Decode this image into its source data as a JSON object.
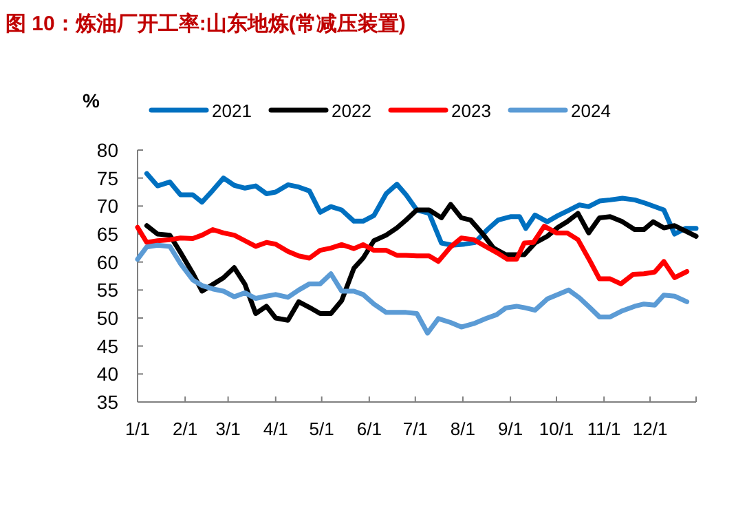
{
  "chart_data": {
    "type": "line",
    "title": "图 10：炼油厂开工率:山东地炼(常减压装置)",
    "ylabel": "%",
    "xlim": [
      "--01-01",
      "--12-31"
    ],
    "xticks": [
      {
        "value": "--01-01",
        "label": "1/1"
      },
      {
        "value": "--02-01",
        "label": "2/1"
      },
      {
        "value": "--03-01",
        "label": "3/1"
      },
      {
        "value": "--04-01",
        "label": "4/1"
      },
      {
        "value": "--05-01",
        "label": "5/1"
      },
      {
        "value": "--06-01",
        "label": "6/1"
      },
      {
        "value": "--07-01",
        "label": "7/1"
      },
      {
        "value": "--08-01",
        "label": "8/1"
      },
      {
        "value": "--09-01",
        "label": "9/1"
      },
      {
        "value": "--10-01",
        "label": "10/1"
      },
      {
        "value": "--11-01",
        "label": "11/1"
      },
      {
        "value": "--12-01",
        "label": "12/1"
      },
      {
        "value": "--12-31",
        "label": null
      }
    ],
    "ylim": [
      35,
      80
    ],
    "yticks": [
      35,
      40,
      45,
      50,
      55,
      60,
      65,
      70,
      75,
      80
    ],
    "grid": false,
    "legend": "top",
    "marker": "none",
    "line_style": "solid",
    "series": [
      {
        "name": "2021",
        "color": "#0070c0",
        "x": [
          "--01-07",
          "--01-14",
          "--01-22",
          "--01-29",
          "--02-06",
          "--02-12",
          "--02-19",
          "--02-26",
          "--03-05",
          "--03-12",
          "--03-19",
          "--03-26",
          "--04-01",
          "--04-09",
          "--04-16",
          "--04-23",
          "--04-30",
          "--05-07",
          "--05-14",
          "--05-22",
          "--05-28",
          "--06-04",
          "--06-12",
          "--06-19",
          "--06-25",
          "--07-02",
          "--07-10",
          "--07-18",
          "--07-25",
          "--08-02",
          "--08-09",
          "--08-17",
          "--08-24",
          "--09-01",
          "--09-07",
          "--09-11",
          "--09-17",
          "--09-25",
          "--10-02",
          "--10-08",
          "--10-16",
          "--10-22",
          "--10-29",
          "--11-05",
          "--11-13",
          "--11-21",
          "--11-28",
          "--12-10",
          "--12-17",
          "--12-24",
          "--12-31"
        ],
        "values": [
          75.8,
          73.6,
          74.3,
          72,
          72,
          70.7,
          72.8,
          75,
          73.7,
          73.2,
          73.6,
          72.2,
          72.5,
          73.8,
          73.4,
          72.7,
          68.9,
          69.9,
          69.3,
          67.3,
          67.3,
          68.3,
          72.2,
          73.9,
          72,
          69.3,
          68.7,
          63.4,
          63,
          63.2,
          63.5,
          65.8,
          67.5,
          68.1,
          68.1,
          66,
          68.4,
          67.2,
          68.3,
          69.1,
          70.2,
          69.9,
          70.9,
          71.1,
          71.4,
          71.1,
          70.5,
          69.3,
          65,
          66,
          66
        ]
      },
      {
        "name": "2022",
        "color": "#000000",
        "x": [
          "--01-07",
          "--01-14",
          "--01-22",
          "--01-29",
          "--02-06",
          "--02-12",
          "--02-19",
          "--02-26",
          "--03-05",
          "--03-12",
          "--03-19",
          "--03-26",
          "--04-01",
          "--04-09",
          "--04-16",
          "--04-23",
          "--04-30",
          "--05-07",
          "--05-14",
          "--05-22",
          "--05-28",
          "--06-04",
          "--06-12",
          "--06-19",
          "--06-25",
          "--07-02",
          "--07-10",
          "--07-18",
          "--07-24",
          "--07-31",
          "--08-06",
          "--08-14",
          "--08-21",
          "--08-29",
          "--09-10",
          "--09-17",
          "--09-25",
          "--10-02",
          "--10-08",
          "--10-15",
          "--10-22",
          "--10-29",
          "--11-05",
          "--11-13",
          "--11-21",
          "--11-27",
          "--12-03",
          "--12-10",
          "--12-17",
          "--12-25",
          "--12-31"
        ],
        "values": [
          66.5,
          65,
          64.8,
          61.7,
          58,
          54.8,
          56,
          57.2,
          59,
          56,
          50.8,
          52.1,
          50,
          49.6,
          52.9,
          51.9,
          50.8,
          50.8,
          53.1,
          58.9,
          60.7,
          63.8,
          64.8,
          66.1,
          67.5,
          69.3,
          69.3,
          67.9,
          70.3,
          67.9,
          67.5,
          65,
          62.5,
          61.3,
          61.3,
          63.4,
          64.6,
          66.2,
          67.2,
          68.7,
          65.2,
          67.9,
          68.1,
          67.2,
          65.8,
          65.8,
          67.2,
          66.1,
          66.5,
          65.4,
          64.6
        ]
      },
      {
        "name": "2023",
        "color": "#ff0000",
        "x": [
          "--01-01",
          "--01-07",
          "--01-14",
          "--01-22",
          "--01-29",
          "--02-06",
          "--02-12",
          "--02-19",
          "--02-26",
          "--03-05",
          "--03-12",
          "--03-19",
          "--03-26",
          "--04-01",
          "--04-09",
          "--04-16",
          "--04-23",
          "--04-30",
          "--05-07",
          "--05-14",
          "--05-22",
          "--05-28",
          "--06-04",
          "--06-12",
          "--06-19",
          "--06-25",
          "--07-02",
          "--07-10",
          "--07-16",
          "--07-24",
          "--07-31",
          "--08-08",
          "--08-15",
          "--08-23",
          "--08-30",
          "--09-05",
          "--09-10",
          "--09-16",
          "--09-23",
          "--10-01",
          "--10-08",
          "--10-15",
          "--10-23",
          "--10-29",
          "--11-05",
          "--11-12",
          "--11-20",
          "--11-27",
          "--12-04",
          "--12-10",
          "--12-17",
          "--12-25"
        ],
        "values": [
          66.2,
          63.5,
          63.8,
          64,
          64.3,
          64.2,
          64.8,
          65.8,
          65.2,
          64.8,
          63.8,
          62.8,
          63.5,
          63.2,
          61.9,
          61.1,
          60.7,
          62.1,
          62.5,
          63.1,
          62.4,
          63.1,
          62.1,
          62.1,
          61.2,
          61.2,
          61.1,
          61.1,
          60.1,
          62.7,
          64.3,
          64,
          62.9,
          61.7,
          60.5,
          60.5,
          63.4,
          63.5,
          66.4,
          65.2,
          65.2,
          64,
          60.1,
          57,
          57,
          56.1,
          57.8,
          57.9,
          58.2,
          60.1,
          57.2,
          58.3
        ]
      },
      {
        "name": "2024",
        "color": "#5b9bd5",
        "x": [
          "--01-01",
          "--01-07",
          "--01-14",
          "--01-22",
          "--01-29",
          "--02-06",
          "--02-12",
          "--02-19",
          "--02-26",
          "--03-05",
          "--03-12",
          "--03-19",
          "--03-26",
          "--04-01",
          "--04-09",
          "--04-16",
          "--04-23",
          "--04-30",
          "--05-07",
          "--05-14",
          "--05-22",
          "--05-28",
          "--06-04",
          "--06-12",
          "--06-19",
          "--06-25",
          "--07-02",
          "--07-09",
          "--07-16",
          "--07-24",
          "--07-31",
          "--08-08",
          "--08-16",
          "--08-23",
          "--08-29",
          "--09-05",
          "--09-11",
          "--09-17",
          "--09-25",
          "--10-02",
          "--10-09",
          "--10-16",
          "--10-23",
          "--10-29",
          "--11-05",
          "--11-13",
          "--11-21",
          "--11-27",
          "--12-04",
          "--12-10",
          "--12-17",
          "--12-25"
        ],
        "values": [
          60.5,
          62.7,
          63,
          62.8,
          59.7,
          56.8,
          55.8,
          55.2,
          54.8,
          53.8,
          54.5,
          53.5,
          53.9,
          54.2,
          53.7,
          55,
          56.1,
          56.1,
          57.9,
          54.8,
          54.8,
          54.2,
          52.5,
          51,
          51,
          51,
          50.8,
          47.3,
          49.9,
          49.2,
          48.4,
          49,
          49.9,
          50.6,
          51.8,
          52.1,
          51.8,
          51.4,
          53.4,
          54.2,
          55,
          53.6,
          51.8,
          50.2,
          50.2,
          51.3,
          52.1,
          52.5,
          52.3,
          54.1,
          53.9,
          52.9
        ]
      }
    ]
  }
}
